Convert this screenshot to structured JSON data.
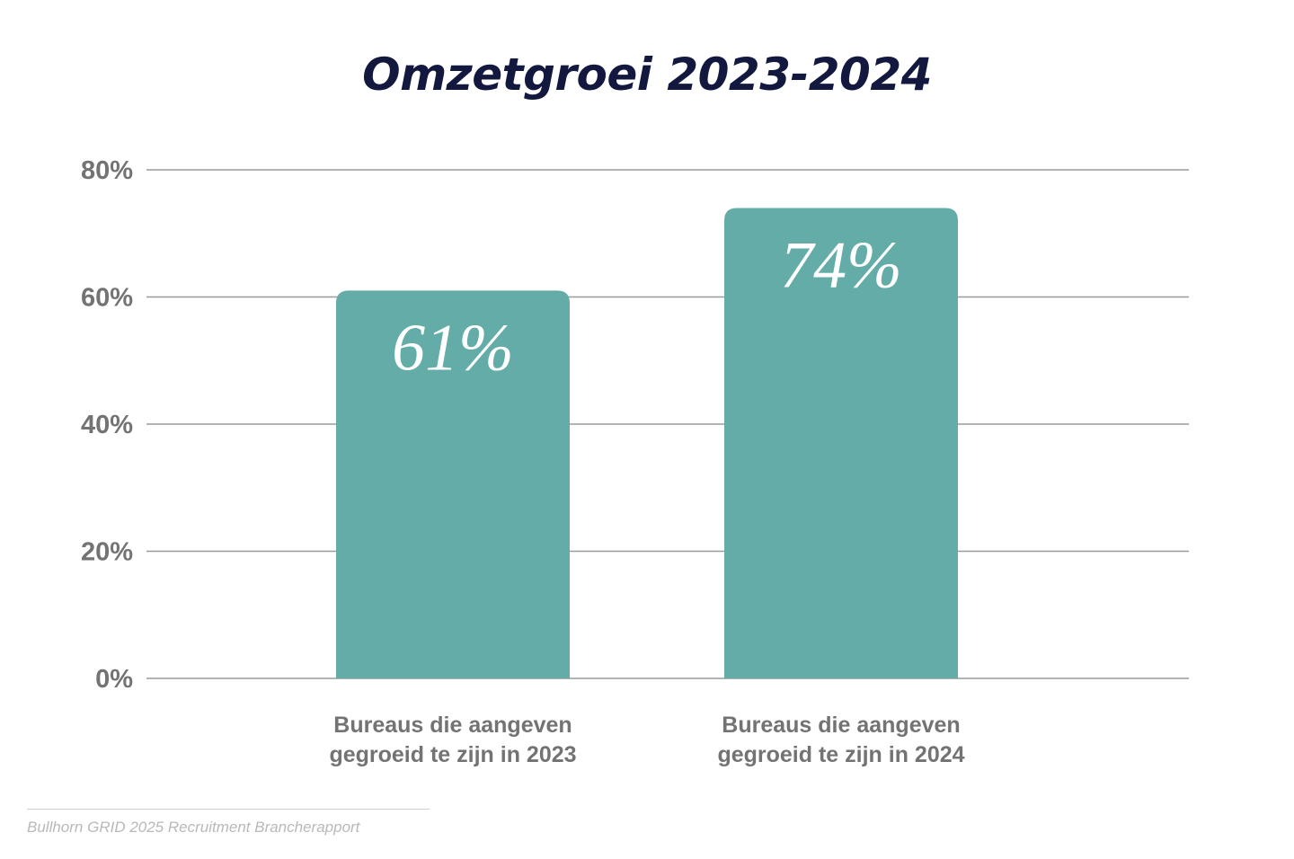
{
  "chart_data": {
    "type": "bar",
    "title": "Omzetgroei 2023-2024",
    "categories": [
      [
        "Bureaus die aangeven",
        "gegroeid te zijn in 2023"
      ],
      [
        "Bureaus die aangeven",
        "gegroeid te zijn in 2024"
      ]
    ],
    "values": [
      61,
      74
    ],
    "value_labels": [
      "61%",
      "74%"
    ],
    "yticks": [
      0,
      20,
      40,
      60,
      80
    ],
    "ytick_labels": [
      "0%",
      "20%",
      "40%",
      "60%",
      "80%"
    ],
    "ylim": [
      0,
      80
    ],
    "xlabel": "",
    "ylabel": "",
    "grid": true,
    "legend": "none",
    "bar_color": "#63aca8",
    "title_color": "#13183f",
    "text_color": "#737373",
    "grid_color": "#9a9a9a"
  },
  "source": "Bullhorn GRID 2025 Recruitment Brancherapport"
}
